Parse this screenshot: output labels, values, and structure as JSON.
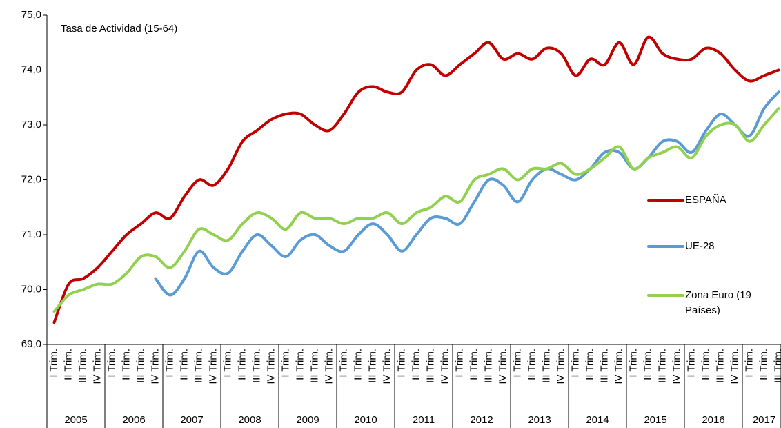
{
  "chart_data": {
    "type": "line",
    "title": "Tasa de Actividad (15-64)",
    "years": [
      "2005",
      "2006",
      "2007",
      "2008",
      "2009",
      "2010",
      "2011",
      "2012",
      "2013",
      "2014",
      "2015",
      "2016",
      "2017"
    ],
    "categories": [
      "I Trim.",
      "II Trim.",
      "III Trim.",
      "IV Trim.",
      "I Trim.",
      "II Trim.",
      "III Trim.",
      "IV Trim.",
      "I Trim.",
      "II Trim.",
      "III Trim.",
      "IV Trim.",
      "I Trim.",
      "II Trim.",
      "III Trim.",
      "IV Trim.",
      "I Trim.",
      "II Trim.",
      "III Trim.",
      "IV Trim.",
      "I Trim.",
      "II Trim.",
      "III Trim.",
      "IV Trim.",
      "I Trim.",
      "II Trim.",
      "III Trim.",
      "IV Trim.",
      "I Trim.",
      "II Trim.",
      "III Trim.",
      "IV Trim.",
      "I Trim.",
      "II Trim.",
      "III Trim.",
      "IV Trim.",
      "I Trim.",
      "II Trim.",
      "III Trim.",
      "IV Trim.",
      "I Trim.",
      "II Trim.",
      "III Trim.",
      "IV Trim.",
      "I Trim.",
      "II Trim.",
      "III Trim.",
      "IV Trim.",
      "I Trim.",
      "II Trim.",
      "III Trim."
    ],
    "series": [
      {
        "name": "ESPAÑA",
        "color": "#c00000",
        "values": [
          69.4,
          70.1,
          70.2,
          70.4,
          70.7,
          71.0,
          71.2,
          71.4,
          71.3,
          71.7,
          72.0,
          71.9,
          72.2,
          72.7,
          72.9,
          73.1,
          73.2,
          73.2,
          73.0,
          72.9,
          73.2,
          73.6,
          73.7,
          73.6,
          73.6,
          74.0,
          74.1,
          73.9,
          74.1,
          74.3,
          74.5,
          74.2,
          74.3,
          74.2,
          74.4,
          74.3,
          73.9,
          74.2,
          74.1,
          74.5,
          74.1,
          74.6,
          74.3,
          74.2,
          74.2,
          74.4,
          74.3,
          74.0,
          73.8,
          73.9,
          74.0
        ]
      },
      {
        "name": "UE-28",
        "color": "#5b9bd5",
        "values": [
          null,
          null,
          null,
          null,
          null,
          null,
          null,
          70.2,
          69.9,
          70.2,
          70.7,
          70.4,
          70.3,
          70.7,
          71.0,
          70.8,
          70.6,
          70.9,
          71.0,
          70.8,
          70.7,
          71.0,
          71.2,
          71.0,
          70.7,
          71.0,
          71.3,
          71.3,
          71.2,
          71.6,
          72.0,
          71.9,
          71.6,
          72.0,
          72.2,
          72.1,
          72.0,
          72.2,
          72.5,
          72.5,
          72.2,
          72.4,
          72.7,
          72.7,
          72.5,
          72.9,
          73.2,
          73.0,
          72.8,
          73.3,
          73.6
        ]
      },
      {
        "name": "Zona Euro (19 Países)",
        "color": "#92d050",
        "values": [
          69.6,
          69.9,
          70.0,
          70.1,
          70.1,
          70.3,
          70.6,
          70.6,
          70.4,
          70.7,
          71.1,
          71.0,
          70.9,
          71.2,
          71.4,
          71.3,
          71.1,
          71.4,
          71.3,
          71.3,
          71.2,
          71.3,
          71.3,
          71.4,
          71.2,
          71.4,
          71.5,
          71.7,
          71.6,
          72.0,
          72.1,
          72.2,
          72.0,
          72.2,
          72.2,
          72.3,
          72.1,
          72.2,
          72.4,
          72.6,
          72.2,
          72.4,
          72.5,
          72.6,
          72.4,
          72.8,
          73.0,
          73.0,
          72.7,
          73.0,
          73.3
        ]
      }
    ],
    "ylim": [
      69,
      75
    ],
    "yticks": [
      {
        "value": 69,
        "label": "69,0"
      },
      {
        "value": 70,
        "label": "70,0"
      },
      {
        "value": 71,
        "label": "71,0"
      },
      {
        "value": 72,
        "label": "72,0"
      },
      {
        "value": 73,
        "label": "73,0"
      },
      {
        "value": 74,
        "label": "74,0"
      },
      {
        "value": 75,
        "label": "75,0"
      }
    ],
    "grid": false
  }
}
